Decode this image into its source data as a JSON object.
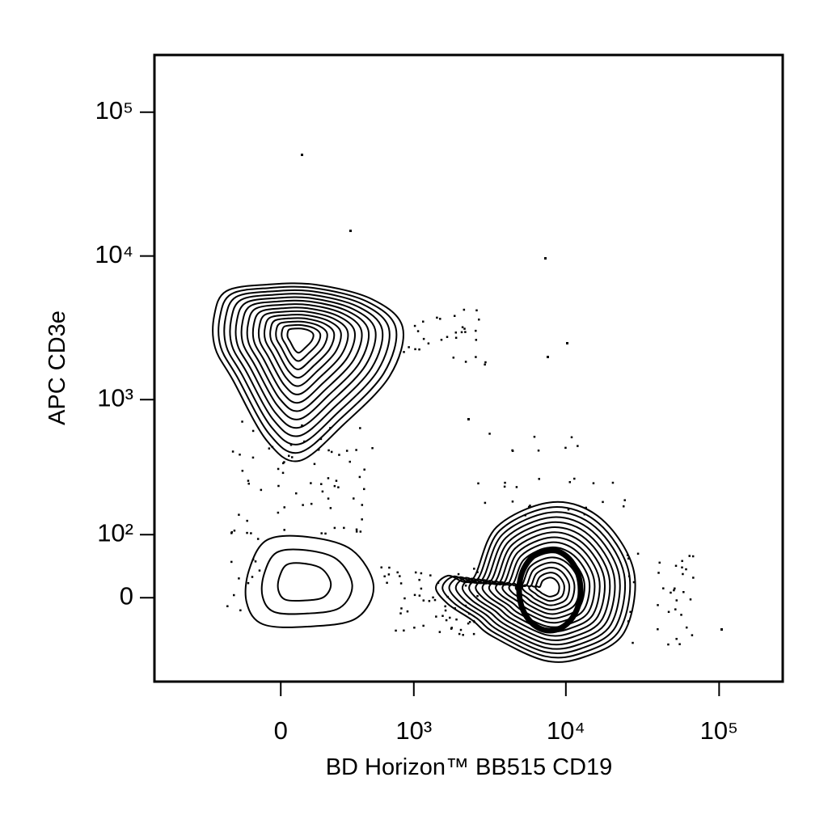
{
  "chart_data": {
    "type": "contour",
    "x_label": "BD Horizon™ BB515 CD19",
    "y_label": "APC CD3e",
    "xscale": "biexponential",
    "yscale": "biexponential",
    "xlim": [
      -900,
      260000
    ],
    "ylim": [
      -150,
      250000
    ],
    "xticks": [
      0,
      {
        "value": 1000,
        "label": "10³"
      },
      {
        "value": 10000,
        "label": "10⁴"
      },
      {
        "value": 100000,
        "label": "10⁵"
      }
    ],
    "yticks": [
      0,
      {
        "value": 100,
        "label": "10²"
      },
      {
        "value": 1000,
        "label": "10³"
      },
      {
        "value": 10000,
        "label": "10⁴"
      },
      {
        "value": 100000,
        "label": "10⁵"
      }
    ],
    "color": "#000000"
  }
}
